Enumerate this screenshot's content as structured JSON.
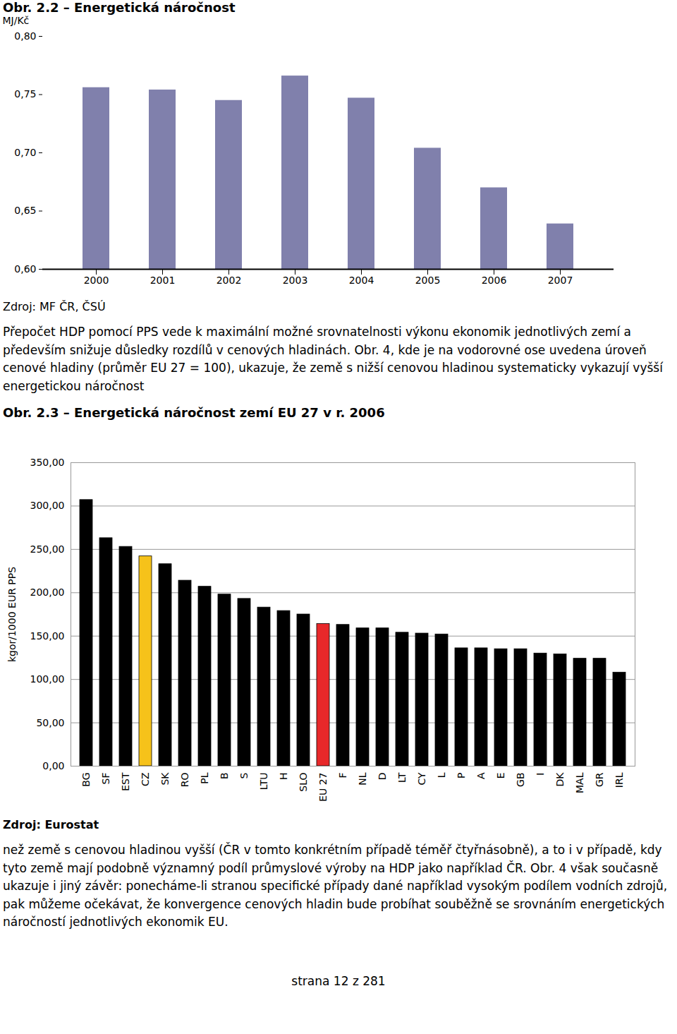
{
  "document": {
    "paragraphs": [
      "Přepočet HDP pomocí PPS vede k maximální možné srovnatelnosti výkonu ekonomik jednotlivých zemí a především snižuje důsledky rozdílů v cenových hladinách. Obr. 4, kde je na vodorovné ose uvedena úroveň cenové hladiny (průměr EU 27 = 100), ukazuje, že země s nižší cenovou hladinou systematicky vykazují vyšší energetickou náročnost",
      "než země s cenovou hladinou vyšší (ČR v tomto konkrétním případě téměř čtyřnásobně), a to i v případě, kdy tyto země mají podobně významný podíl průmyslové výroby na HDP jako například ČR. Obr. 4 však současně ukazuje i jiný závěr: ponecháme-li stranou specifické případy dané například vysokým podílem vodních zdrojů, pak můžeme očekávat, že konvergence cenových hladin bude probíhat souběžně se srovnáním energetických náročností jednotlivých ekonomik EU."
    ],
    "footer": "strana 12 z 281"
  },
  "chart_data": [
    {
      "type": "bar",
      "title": "Obr. 2.2 – Energetická náročnost",
      "y_label": "MJ/Kč",
      "source": "Zdroj: MF ČR, ČSÚ",
      "categories": [
        "2000",
        "2001",
        "2002",
        "2003",
        "2004",
        "2005",
        "2006",
        "2007"
      ],
      "values": [
        0.756,
        0.754,
        0.745,
        0.766,
        0.747,
        0.704,
        0.67,
        0.639
      ],
      "color": "#8080ac",
      "ylim": [
        0.6,
        0.8
      ],
      "yticks": [
        {
          "value": 0.6,
          "label": "0,60"
        },
        {
          "value": 0.65,
          "label": "0,65"
        },
        {
          "value": 0.7,
          "label": "0,70"
        },
        {
          "value": 0.75,
          "label": "0,75"
        },
        {
          "value": 0.8,
          "label": "0,80"
        }
      ],
      "grid": false
    },
    {
      "type": "bar",
      "title": "Obr. 2.3 – Energetická náročnost zemí EU 27 v r. 2006",
      "y_label": "kgor/1000 EUR PPS",
      "source": "Zdroj: Eurostat",
      "categories": [
        "BG",
        "SF",
        "EST",
        "CZ",
        "SK",
        "RO",
        "PL",
        "B",
        "S",
        "LTU",
        "H",
        "SLO",
        "EU 27",
        "F",
        "NL",
        "D",
        "LT",
        "CY",
        "L",
        "P",
        "A",
        "E",
        "GB",
        "I",
        "DK",
        "MAL",
        "GR",
        "IRL"
      ],
      "values": [
        307,
        263,
        253,
        242,
        233,
        214,
        207,
        198,
        193,
        183,
        179,
        175,
        164,
        163,
        159,
        159,
        154,
        153,
        152,
        136,
        136,
        135,
        135,
        130,
        129,
        124,
        124,
        108
      ],
      "colors": [
        "#000000",
        "#000000",
        "#000000",
        "#f6c21a",
        "#000000",
        "#000000",
        "#000000",
        "#000000",
        "#000000",
        "#000000",
        "#000000",
        "#000000",
        "#e8282a",
        "#000000",
        "#000000",
        "#000000",
        "#000000",
        "#000000",
        "#000000",
        "#000000",
        "#000000",
        "#000000",
        "#000000",
        "#000000",
        "#000000",
        "#000000",
        "#000000",
        "#000000"
      ],
      "ylim": [
        0,
        350
      ],
      "yticks": [
        {
          "value": 0,
          "label": "0,00"
        },
        {
          "value": 50,
          "label": "50,00"
        },
        {
          "value": 100,
          "label": "100,00"
        },
        {
          "value": 150,
          "label": "150,00"
        },
        {
          "value": 200,
          "label": "200,00"
        },
        {
          "value": 250,
          "label": "250,00"
        },
        {
          "value": 300,
          "label": "300,00"
        },
        {
          "value": 350,
          "label": "350,00"
        }
      ],
      "grid": true
    }
  ]
}
